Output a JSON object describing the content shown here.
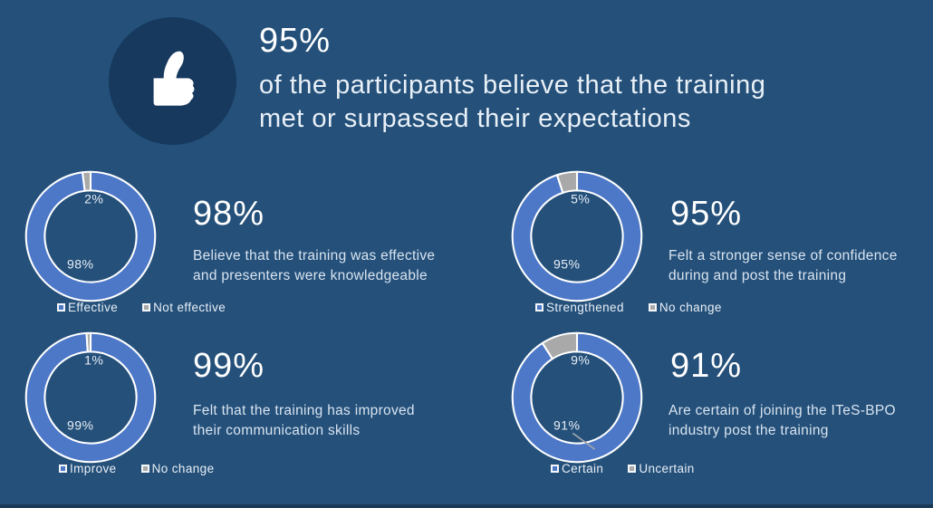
{
  "colors": {
    "background": "#24507A",
    "badge_circle": "#16395D",
    "primary_series": "#4D78C8",
    "secondary_series": "#A9A9A9",
    "heading_text": "#FFFFFF",
    "body_text": "#D9E4F0",
    "bottom_edge": "#1B3A58"
  },
  "header": {
    "icon": "thumbs-up-icon",
    "stat": "95%",
    "line1": "of the participants believe that the training",
    "line2": "met or surpassed their expectations"
  },
  "chart_data": [
    {
      "type": "pie",
      "subtype": "donut",
      "headline": "98%",
      "description_line1": "Believe that the training was effective",
      "description_line2": "and presenters were knowledgeable",
      "categories": [
        "Effective",
        "Not effective"
      ],
      "values": [
        98,
        2
      ],
      "data_labels": [
        "98%",
        "2%"
      ],
      "colors": [
        "#4D78C8",
        "#A9A9A9"
      ],
      "legend_position": "bottom",
      "start_angle_deg": 0,
      "direction": "clockwise",
      "leader_line": false
    },
    {
      "type": "pie",
      "subtype": "donut",
      "headline": "95%",
      "description_line1": "Felt a stronger sense of confidence",
      "description_line2": "during and post the training",
      "categories": [
        "Strengthened",
        "No change"
      ],
      "values": [
        95,
        5
      ],
      "data_labels": [
        "95%",
        "5%"
      ],
      "colors": [
        "#4D78C8",
        "#A9A9A9"
      ],
      "legend_position": "bottom",
      "start_angle_deg": 0,
      "direction": "clockwise",
      "leader_line": false
    },
    {
      "type": "pie",
      "subtype": "donut",
      "headline": "99%",
      "description_line1": "Felt that the training has improved",
      "description_line2": "their communication skills",
      "categories": [
        "Improve",
        "No change"
      ],
      "values": [
        99,
        1
      ],
      "data_labels": [
        "99%",
        "1%"
      ],
      "colors": [
        "#4D78C8",
        "#A9A9A9"
      ],
      "legend_position": "bottom",
      "start_angle_deg": 0,
      "direction": "clockwise",
      "leader_line": false
    },
    {
      "type": "pie",
      "subtype": "donut",
      "headline": "91%",
      "description_line1": "Are certain of joining the ITeS-BPO",
      "description_line2": "industry post the training",
      "categories": [
        "Certain",
        "Uncertain"
      ],
      "values": [
        91,
        9
      ],
      "data_labels": [
        "91%",
        "9%"
      ],
      "colors": [
        "#4D78C8",
        "#A9A9A9"
      ],
      "legend_position": "bottom",
      "start_angle_deg": 0,
      "direction": "clockwise",
      "leader_line": true
    }
  ]
}
